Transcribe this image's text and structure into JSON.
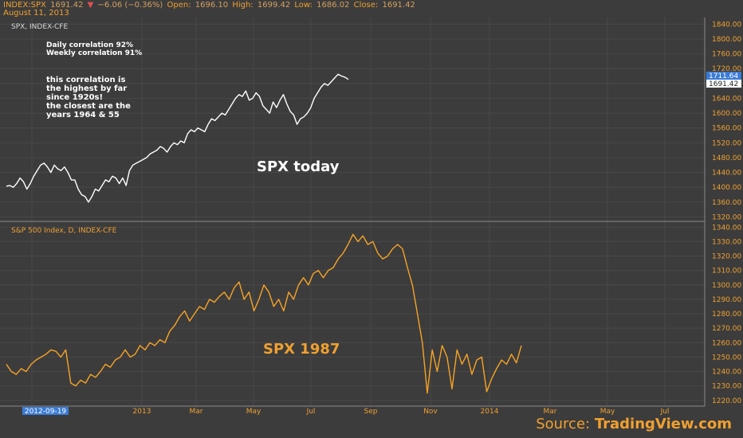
{
  "header": {
    "symbol": "INDEX:SPX",
    "last": "1691.42",
    "change_arrow": "▼",
    "change": "−6.06 (−0.36%)",
    "open_label": "Open:",
    "open": "1696.10",
    "high_label": "High:",
    "high": "1699.42",
    "low_label": "Low:",
    "low": "1686.02",
    "close_label": "Close:",
    "close": "1691.42",
    "date": "August 11, 2013"
  },
  "top_pane": {
    "title": "SPX, INDEX-CFE",
    "note1": "Daily correlation 92%",
    "note2": "Weekly correlation 91%",
    "note3_lines": [
      "this correlation is",
      "the highest by far",
      "since 1920s!",
      "the closest are the",
      "years 1964 & 55"
    ],
    "big_label": "SPX today",
    "price_tag_high": "1711.64",
    "price_tag_last": "1691.42"
  },
  "bottom_pane": {
    "title": "S&P 500 Index, D, INDEX-CFE",
    "big_label": "SPX 1987"
  },
  "source": {
    "prefix": "Source: ",
    "brand": "TradingView.com"
  },
  "colors": {
    "background": "#3c3c3c",
    "accent": "#f0a030",
    "top_line": "#ffffff",
    "bottom_line": "#f7a325",
    "tag_blue": "#3a7bd5"
  },
  "chart_data": [
    {
      "type": "line",
      "title": "SPX, INDEX-CFE",
      "yticks": [
        1320,
        1360,
        1400,
        1440,
        1480,
        1520,
        1560,
        1600,
        1640,
        1680,
        1720,
        1760,
        1800,
        1840
      ],
      "ytick_labels": [
        "1320.00",
        "1360.00",
        "1400.00",
        "1440.00",
        "1480.00",
        "1520.00",
        "1560.00",
        "1600.00",
        "1640.00",
        "1680.00",
        "1720.00",
        "1760.00",
        "1800.00",
        "1840.00"
      ],
      "ylim": [
        1308,
        1858
      ],
      "x_tick_labels": [
        "2012-09-19",
        "2013",
        "Mar",
        "May",
        "Jul",
        "Sep",
        "Nov",
        "2014",
        "Mar",
        "May",
        "Jul"
      ],
      "series": [
        {
          "values": [
            1403,
            1405,
            1400,
            1410,
            1425,
            1415,
            1395,
            1410,
            1430,
            1445,
            1460,
            1465,
            1455,
            1440,
            1460,
            1450,
            1445,
            1455,
            1440,
            1420,
            1420,
            1395,
            1380,
            1375,
            1360,
            1375,
            1395,
            1390,
            1405,
            1420,
            1415,
            1430,
            1425,
            1410,
            1425,
            1405,
            1445,
            1460,
            1465,
            1470,
            1475,
            1480,
            1490,
            1495,
            1500,
            1510,
            1505,
            1495,
            1510,
            1520,
            1515,
            1525,
            1520,
            1545,
            1555,
            1550,
            1560,
            1555,
            1550,
            1570,
            1585,
            1580,
            1590,
            1600,
            1595,
            1610,
            1625,
            1640,
            1650,
            1645,
            1660,
            1635,
            1640,
            1655,
            1645,
            1620,
            1610,
            1600,
            1630,
            1615,
            1635,
            1650,
            1625,
            1605,
            1595,
            1570,
            1585,
            1590,
            1600,
            1615,
            1640,
            1655,
            1670,
            1680,
            1675,
            1685,
            1695,
            1705,
            1700,
            1697,
            1691
          ]
        }
      ]
    },
    {
      "type": "line",
      "title": "S&P 500 Index, D, INDEX-CFE",
      "yticks": [
        1220,
        1230,
        1240,
        1250,
        1260,
        1270,
        1280,
        1290,
        1300,
        1310,
        1320,
        1330,
        1340
      ],
      "ytick_labels": [
        "1220.00",
        "1230.00",
        "1240.00",
        "1250.00",
        "1260.00",
        "1270.00",
        "1280.00",
        "1290.00",
        "1300.00",
        "1310.00",
        "1320.00",
        "1330.00",
        "1340.00"
      ],
      "ylim": [
        1216,
        1344
      ],
      "x_tick_labels": [
        "2012-09-19",
        "2013",
        "Mar",
        "May",
        "Jul",
        "Sep",
        "Nov",
        "2014",
        "Mar",
        "May",
        "Jul"
      ],
      "series": [
        {
          "values": [
            1245,
            1240,
            1238,
            1242,
            1240,
            1245,
            1248,
            1250,
            1252,
            1255,
            1254,
            1250,
            1255,
            1232,
            1230,
            1234,
            1232,
            1238,
            1236,
            1240,
            1245,
            1243,
            1248,
            1250,
            1255,
            1250,
            1252,
            1258,
            1255,
            1260,
            1258,
            1262,
            1260,
            1268,
            1272,
            1278,
            1282,
            1275,
            1280,
            1285,
            1283,
            1290,
            1288,
            1292,
            1295,
            1290,
            1298,
            1302,
            1290,
            1295,
            1282,
            1290,
            1300,
            1295,
            1285,
            1290,
            1282,
            1295,
            1290,
            1300,
            1305,
            1300,
            1308,
            1310,
            1305,
            1310,
            1312,
            1318,
            1322,
            1328,
            1335,
            1330,
            1334,
            1328,
            1330,
            1322,
            1318,
            1320,
            1325,
            1328,
            1325,
            1312,
            1300,
            1280,
            1260,
            1225,
            1255,
            1240,
            1258,
            1250,
            1228,
            1255,
            1245,
            1252,
            1238,
            1248,
            1250,
            1226,
            1235,
            1242,
            1248,
            1245,
            1252,
            1246,
            1258
          ]
        }
      ]
    }
  ]
}
